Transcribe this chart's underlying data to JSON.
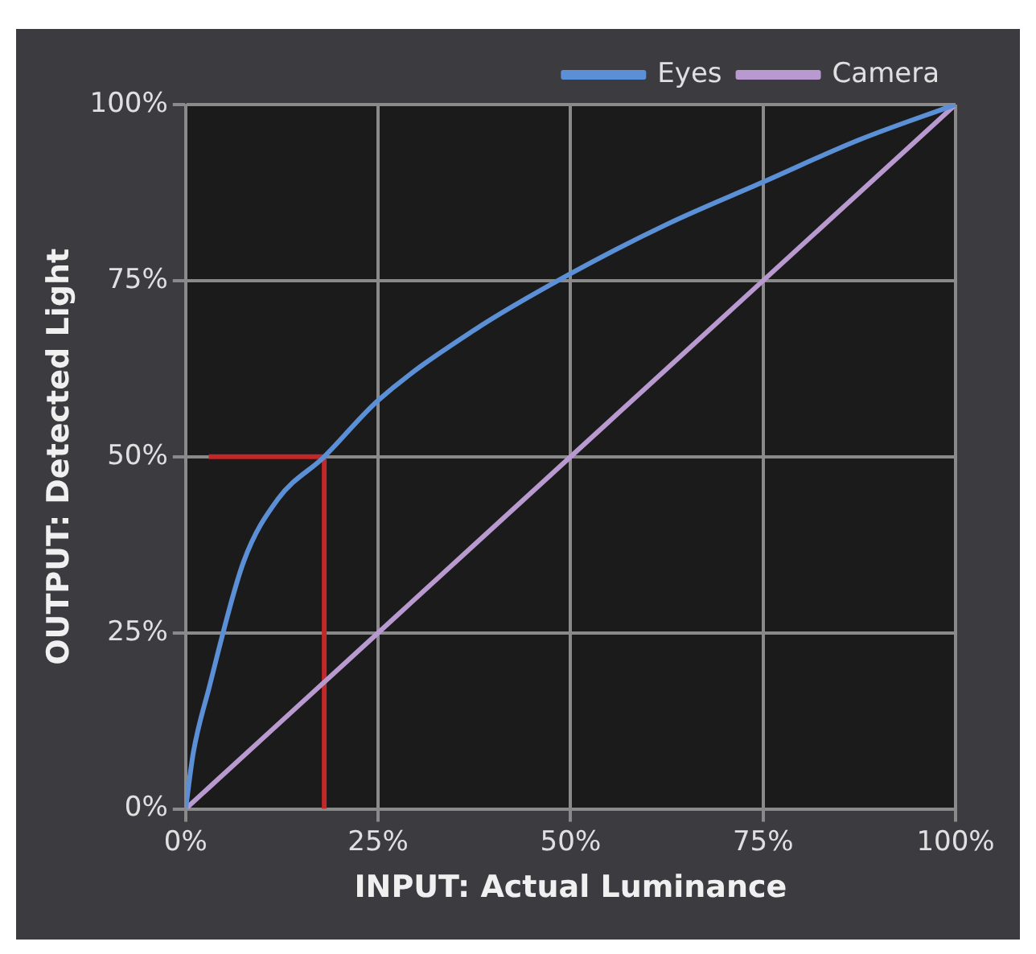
{
  "chart_data": {
    "type": "line",
    "xlabel": "INPUT: Actual Luminance",
    "ylabel": "OUTPUT: Detected Light",
    "xlim": [
      0,
      100
    ],
    "ylim": [
      0,
      100
    ],
    "xticks": [
      {
        "value": 0,
        "label": "0%"
      },
      {
        "value": 25,
        "label": "25%"
      },
      {
        "value": 50,
        "label": "50%"
      },
      {
        "value": 75,
        "label": "75%"
      },
      {
        "value": 100,
        "label": "100%"
      }
    ],
    "yticks": [
      {
        "value": 0,
        "label": "0%"
      },
      {
        "value": 25,
        "label": "25%"
      },
      {
        "value": 50,
        "label": "50%"
      },
      {
        "value": 75,
        "label": "75%"
      },
      {
        "value": 100,
        "label": "100%"
      }
    ],
    "grid": true,
    "legend": "top",
    "marker": "none",
    "series": [
      {
        "name": "Eyes",
        "color": "#5b8fd6",
        "x": [
          0,
          1,
          3,
          7.5,
          12,
          18,
          25,
          37.5,
          50,
          62.5,
          75,
          87.5,
          100
        ],
        "values": [
          0,
          8,
          17,
          35,
          44,
          50,
          58,
          68,
          76,
          83,
          89,
          95,
          100
        ]
      },
      {
        "name": "Camera",
        "color": "#b89ad0",
        "x": [
          0,
          25,
          50,
          75,
          100
        ],
        "values": [
          0,
          25,
          50,
          75,
          100
        ]
      },
      {
        "color": "#c0282a",
        "x": [
          3,
          18,
          18
        ],
        "values": [
          50,
          50,
          0
        ]
      }
    ]
  }
}
